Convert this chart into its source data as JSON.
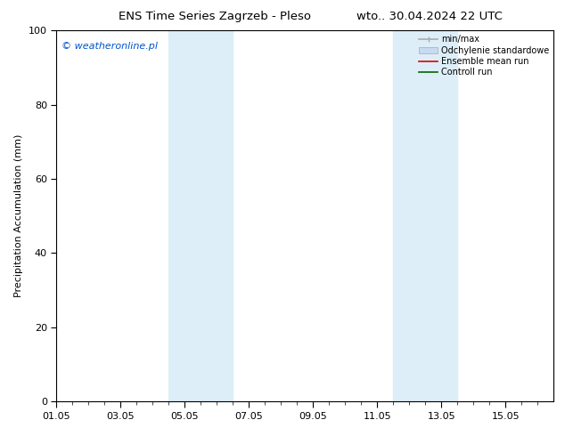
{
  "title_left": "ENS Time Series Zagrzeb - Pleso",
  "title_right": "wto.. 30.04.2024 22 UTC",
  "ylabel": "Precipitation Accumulation (mm)",
  "ylim": [
    0,
    100
  ],
  "yticks": [
    0,
    20,
    40,
    60,
    80,
    100
  ],
  "xlim": [
    0,
    15.5
  ],
  "xtick_labels": [
    "01.05",
    "03.05",
    "05.05",
    "07.05",
    "09.05",
    "11.05",
    "13.05",
    "15.05"
  ],
  "xtick_positions": [
    0,
    2,
    4,
    6,
    8,
    10,
    12,
    14
  ],
  "minor_xtick_positions": [
    0.5,
    1,
    1.5,
    2.5,
    3,
    3.5,
    4.5,
    5,
    5.5,
    6.5,
    7,
    7.5,
    8.5,
    9,
    9.5,
    10.5,
    11,
    11.5,
    12.5,
    13,
    13.5,
    14.5,
    15
  ],
  "shaded_bands": [
    {
      "x_start": 3.5,
      "x_end": 5.5,
      "color": "#ddeef8"
    },
    {
      "x_start": 10.5,
      "x_end": 12.5,
      "color": "#ddeef8"
    }
  ],
  "watermark_text": "© weatheronline.pl",
  "watermark_color": "#0055cc",
  "legend_items": [
    {
      "label": "min/max",
      "color": "#aaaaaa",
      "lw": 1.2
    },
    {
      "label": "Odchylenie standardowe",
      "color": "#c8daf0",
      "lw": 8
    },
    {
      "label": "Ensemble mean run",
      "color": "#dd0000",
      "lw": 1.2
    },
    {
      "label": "Controll run",
      "color": "#006600",
      "lw": 1.2
    }
  ],
  "background_color": "#ffffff",
  "axes_bg_color": "#ffffff",
  "title_fontsize": 9.5,
  "tick_fontsize": 8,
  "ylabel_fontsize": 8,
  "legend_fontsize": 7,
  "watermark_fontsize": 8
}
